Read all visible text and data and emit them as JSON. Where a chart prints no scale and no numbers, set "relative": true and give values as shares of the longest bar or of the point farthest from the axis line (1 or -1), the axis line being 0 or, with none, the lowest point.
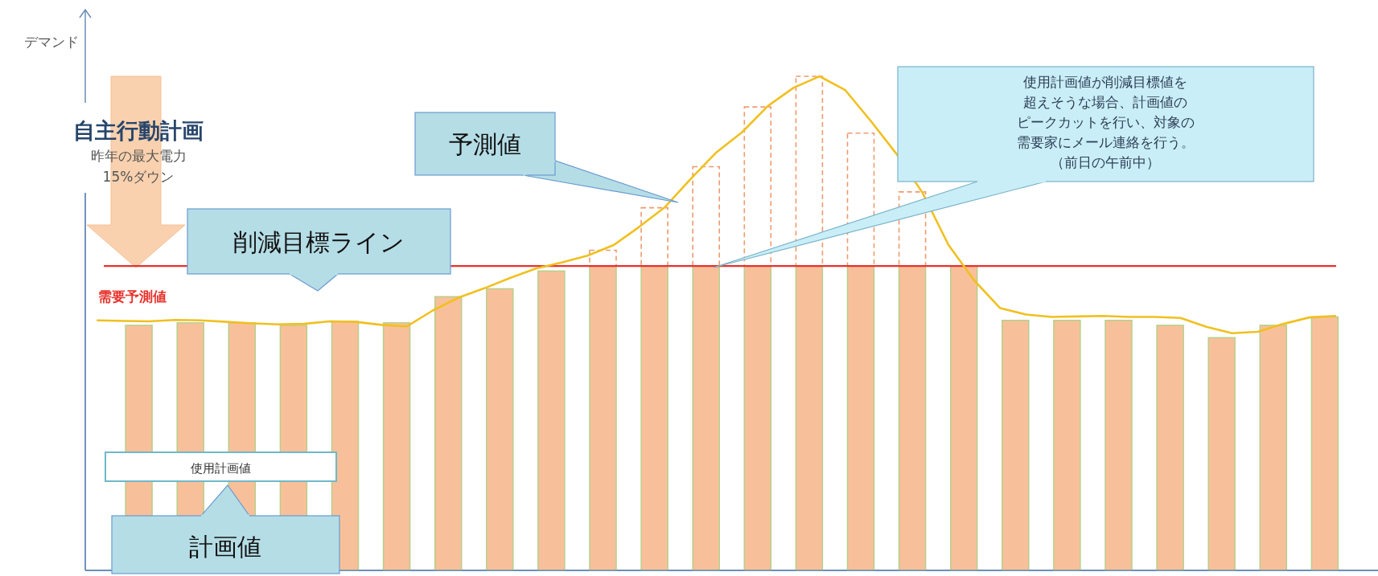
{
  "chart_data": [
    {
      "type": "bar",
      "ylabel": "デマンド",
      "relative": true,
      "stacked": true,
      "categories": [
        null,
        null,
        null,
        null,
        null,
        null,
        null,
        null,
        null,
        null,
        null,
        null,
        null,
        null,
        null,
        null,
        null,
        null,
        null,
        null,
        null,
        null,
        null,
        null
      ],
      "series": [
        {
          "color": "#f8c09a",
          "values": [
            0.496,
            0.501,
            0.501,
            0.496,
            0.504,
            0.501,
            0.554,
            0.57,
            0.606,
            0.616,
            0.616,
            0.616,
            0.616,
            0.616,
            0.616,
            0.616,
            0.616,
            0.506,
            0.506,
            0.506,
            0.496,
            0.471,
            0.496,
            0.513
          ]
        },
        {
          "color": "#ee9a70",
          "line_style": "dashed",
          "values": [
            0,
            0,
            0,
            0,
            0,
            0,
            0,
            0,
            0,
            0.032,
            0.118,
            0.201,
            0.322,
            0.384,
            0.269,
            0.15,
            0,
            0,
            0,
            0,
            0,
            0,
            0,
            0
          ]
        }
      ],
      "ref_lines": [
        {
          "axis": "y",
          "value": 0.616,
          "label": "需要予測値",
          "color": "#e8312b"
        }
      ],
      "annotations": [
        "自主行動計画",
        "昨年の最大電力",
        "15%ダウン",
        "予測値",
        "削減目標ライン",
        "使用計画値が削減目標値を",
        "超えそうな場合、計画値の",
        "ピークカットを行い、対象の",
        "需要家にメール連絡を行う。",
        "（前日の午前中）",
        "使用計画値",
        "計画値"
      ]
    },
    {
      "type": "line",
      "relative": true,
      "categories": [
        null,
        null,
        null,
        null,
        null,
        null,
        null,
        null,
        null,
        null,
        null,
        null,
        null,
        null,
        null,
        null,
        null,
        null,
        null,
        null,
        null,
        null,
        null,
        null,
        null,
        null,
        null,
        null,
        null,
        null,
        null,
        null,
        null,
        null,
        null,
        null,
        null,
        null,
        null,
        null,
        null,
        null,
        null,
        null,
        null,
        null,
        null,
        null,
        null
      ],
      "series": [
        {
          "color": "#f0c020",
          "values": [
            0.506,
            0.505,
            0.504,
            0.507,
            0.506,
            0.503,
            0.5,
            0.498,
            0.499,
            0.504,
            0.503,
            0.497,
            0.494,
            0.526,
            0.552,
            0.571,
            0.592,
            0.611,
            0.623,
            0.637,
            0.658,
            0.695,
            0.735,
            0.792,
            0.846,
            0.887,
            0.94,
            0.977,
            1,
            0.972,
            0.909,
            0.842,
            0.764,
            0.659,
            0.587,
            0.531,
            0.518,
            0.513,
            0.514,
            0.515,
            0.513,
            0.513,
            0.511,
            0.493,
            0.48,
            0.483,
            0.499,
            0.512,
            0.515
          ]
        }
      ]
    }
  ]
}
